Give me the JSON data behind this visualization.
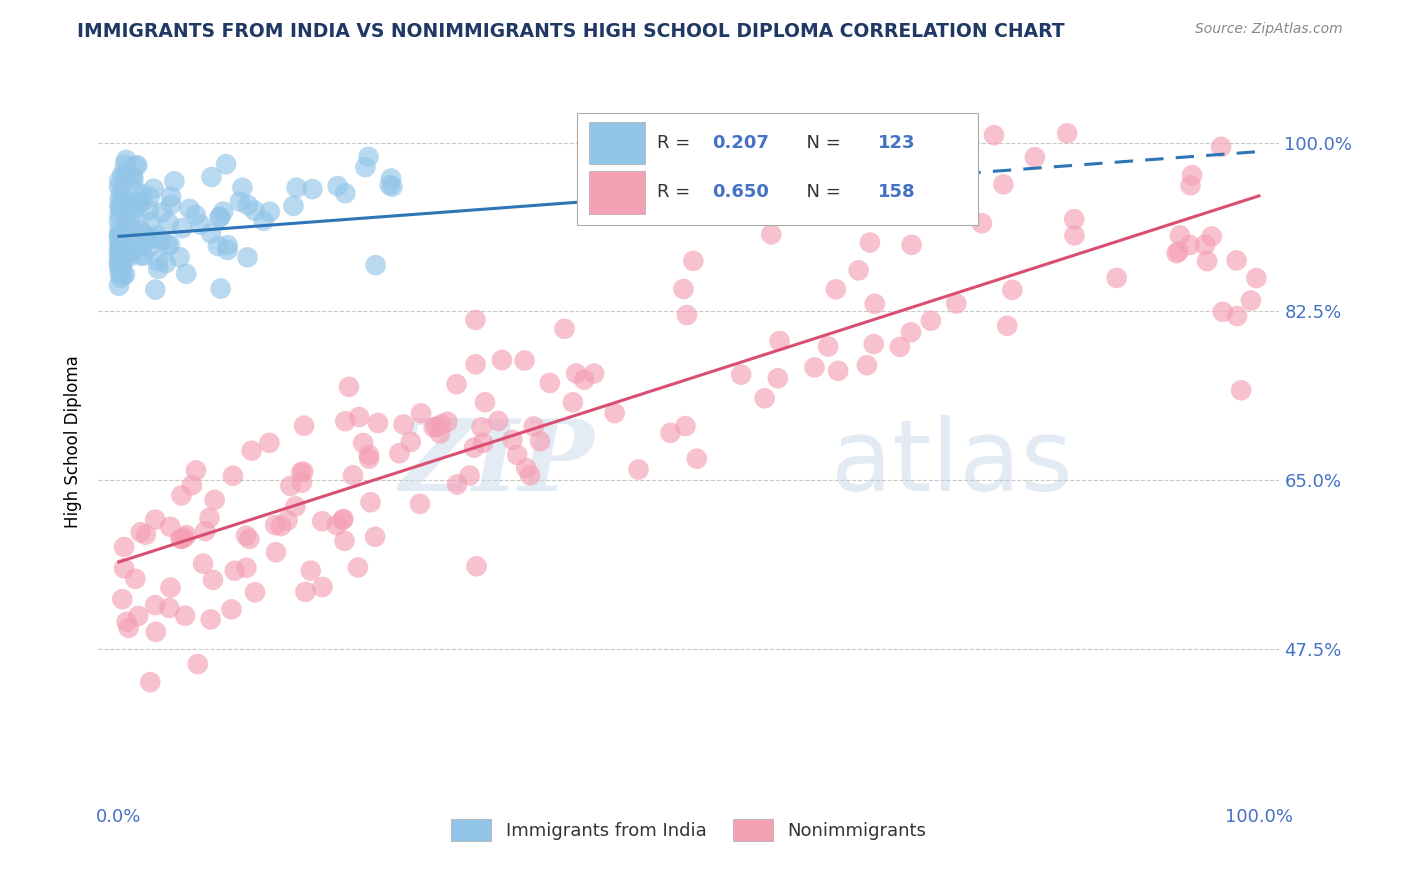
{
  "title": "IMMIGRANTS FROM INDIA VS NONIMMIGRANTS HIGH SCHOOL DIPLOMA CORRELATION CHART",
  "source_text": "Source: ZipAtlas.com",
  "ylabel": "High School Diploma",
  "y_ticks": [
    0.475,
    0.65,
    0.825,
    1.0
  ],
  "y_tick_labels": [
    "47.5%",
    "65.0%",
    "82.5%",
    "100.0%"
  ],
  "x_tick_labels": [
    "0.0%",
    "100.0%"
  ],
  "blue_R": 0.207,
  "blue_N": 123,
  "pink_R": 0.65,
  "pink_N": 158,
  "blue_color": "#92C5E8",
  "pink_color": "#F4A0B5",
  "blue_edge_color": "#6AAFD6",
  "pink_edge_color": "#E880A0",
  "blue_line_color": "#2E75B6",
  "pink_line_color": "#D94F72",
  "legend_label_blue": "Immigrants from India",
  "legend_label_pink": "Nonimmigrants",
  "title_color": "#1F3864",
  "axis_label_color": "#4472C4",
  "watermark_zip": "ZIP",
  "watermark_atlas": "atlas",
  "background_color": "#FFFFFF",
  "grid_color": "#C8C8C8"
}
